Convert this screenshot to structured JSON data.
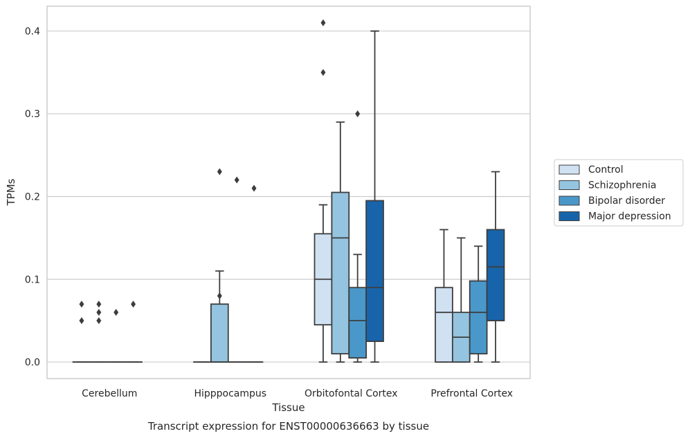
{
  "chart_data": {
    "type": "box",
    "title": "Transcript expression for ENST00000636663 by tissue",
    "xlabel": "Tissue",
    "ylabel": "TPMs",
    "ylim": [
      -0.02,
      0.43
    ],
    "yticks": [
      0.0,
      0.1,
      0.2,
      0.3,
      0.4
    ],
    "ytick_labels": [
      "0.0",
      "0.1",
      "0.2",
      "0.3",
      "0.4"
    ],
    "grid": "horizontal",
    "legend_position": "right",
    "categories": [
      "Cerebellum",
      "Hipppocampus",
      "Orbitofontal Cortex",
      "Prefrontal Cortex"
    ],
    "series": [
      {
        "name": "Control",
        "color": "#d0e1f2",
        "boxes": [
          {
            "q1": 0,
            "median": 0,
            "q3": 0,
            "whisker_low": 0,
            "whisker_high": 0,
            "outliers": [
              0.05,
              0.07
            ]
          },
          {
            "q1": 0,
            "median": 0,
            "q3": 0,
            "whisker_low": 0,
            "whisker_high": 0,
            "outliers": []
          },
          {
            "q1": 0.045,
            "median": 0.1,
            "q3": 0.155,
            "whisker_low": 0,
            "whisker_high": 0.19,
            "outliers": [
              0.35,
              0.41
            ]
          },
          {
            "q1": 0,
            "median": 0.06,
            "q3": 0.09,
            "whisker_low": 0,
            "whisker_high": 0.16,
            "outliers": []
          }
        ]
      },
      {
        "name": "Schizophrenia",
        "color": "#94c4df",
        "boxes": [
          {
            "q1": 0,
            "median": 0,
            "q3": 0,
            "whisker_low": 0,
            "whisker_high": 0,
            "outliers": [
              0.05,
              0.06,
              0.07
            ]
          },
          {
            "q1": 0,
            "median": 0,
            "q3": 0.07,
            "whisker_low": 0,
            "whisker_high": 0.11,
            "outliers": [
              0.08,
              0.23
            ]
          },
          {
            "q1": 0.01,
            "median": 0.15,
            "q3": 0.205,
            "whisker_low": 0,
            "whisker_high": 0.29,
            "outliers": []
          },
          {
            "q1": 0,
            "median": 0.03,
            "q3": 0.06,
            "whisker_low": 0,
            "whisker_high": 0.15,
            "outliers": []
          }
        ]
      },
      {
        "name": "Bipolar disorder",
        "color": "#4a98c9",
        "boxes": [
          {
            "q1": 0,
            "median": 0,
            "q3": 0,
            "whisker_low": 0,
            "whisker_high": 0,
            "outliers": [
              0.06
            ]
          },
          {
            "q1": 0,
            "median": 0,
            "q3": 0,
            "whisker_low": 0,
            "whisker_high": 0,
            "outliers": [
              0.22
            ]
          },
          {
            "q1": 0.005,
            "median": 0.05,
            "q3": 0.09,
            "whisker_low": 0,
            "whisker_high": 0.13,
            "outliers": [
              0.3
            ]
          },
          {
            "q1": 0.01,
            "median": 0.06,
            "q3": 0.098,
            "whisker_low": 0,
            "whisker_high": 0.14,
            "outliers": []
          }
        ]
      },
      {
        "name": "Major depression",
        "color": "#1764ab",
        "boxes": [
          {
            "q1": 0,
            "median": 0,
            "q3": 0,
            "whisker_low": 0,
            "whisker_high": 0,
            "outliers": [
              0.07
            ]
          },
          {
            "q1": 0,
            "median": 0,
            "q3": 0,
            "whisker_low": 0,
            "whisker_high": 0,
            "outliers": [
              0.21
            ]
          },
          {
            "q1": 0.025,
            "median": 0.09,
            "q3": 0.195,
            "whisker_low": 0,
            "whisker_high": 0.4,
            "outliers": []
          },
          {
            "q1": 0.05,
            "median": 0.115,
            "q3": 0.16,
            "whisker_low": 0,
            "whisker_high": 0.23,
            "outliers": []
          }
        ]
      }
    ]
  }
}
